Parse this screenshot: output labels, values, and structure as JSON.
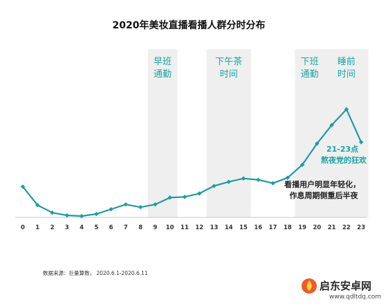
{
  "chart_data": {
    "type": "line",
    "title": "2020年美妆直播看播人群分时分布",
    "categories": [
      "0",
      "1",
      "2",
      "3",
      "4",
      "5",
      "6",
      "7",
      "8",
      "9",
      "10",
      "11",
      "12",
      "13",
      "14",
      "15",
      "16",
      "17",
      "18",
      "19",
      "20",
      "21",
      "22",
      "23"
    ],
    "series": [
      {
        "values": [
          45,
          18,
          7,
          3,
          2,
          5,
          12,
          19,
          15,
          19,
          29,
          30,
          35,
          46,
          52,
          57,
          55,
          50,
          58,
          77,
          108,
          135,
          158,
          110
        ]
      }
    ],
    "ylim": [
      0,
      170
    ],
    "grid": false,
    "highlight_bands": [
      {
        "label": [
          "早班",
          "通勤"
        ],
        "from_hour": 9,
        "to_hour": 10
      },
      {
        "label": [
          "下午茶",
          "时间"
        ],
        "from_hour": 13,
        "to_hour": 15
      },
      {
        "label": [
          "下班",
          "通勤"
        ],
        "from_hour": 19,
        "to_hour": 20
      },
      {
        "label": [
          "睡前",
          "时间"
        ],
        "from_hour": 21,
        "to_hour": 23
      }
    ],
    "annotations": {
      "peak": [
        "21-23点",
        "熬夜党的狂欢"
      ],
      "trend": [
        "看播用户明显年轻化，",
        "作息周期侧重后半夜"
      ]
    },
    "colors": {
      "line": "#1a9e9e",
      "band": "#efefef",
      "accent_text": "#1aa5a5",
      "baseline": "#c8c8c8"
    }
  },
  "source": "数据来源：巨量算数， 2020.6.1-2020.6.11",
  "watermark": {
    "text": "启东安卓网",
    "url": "www.qdltdq.com",
    "icon": "fire-logo-icon"
  }
}
